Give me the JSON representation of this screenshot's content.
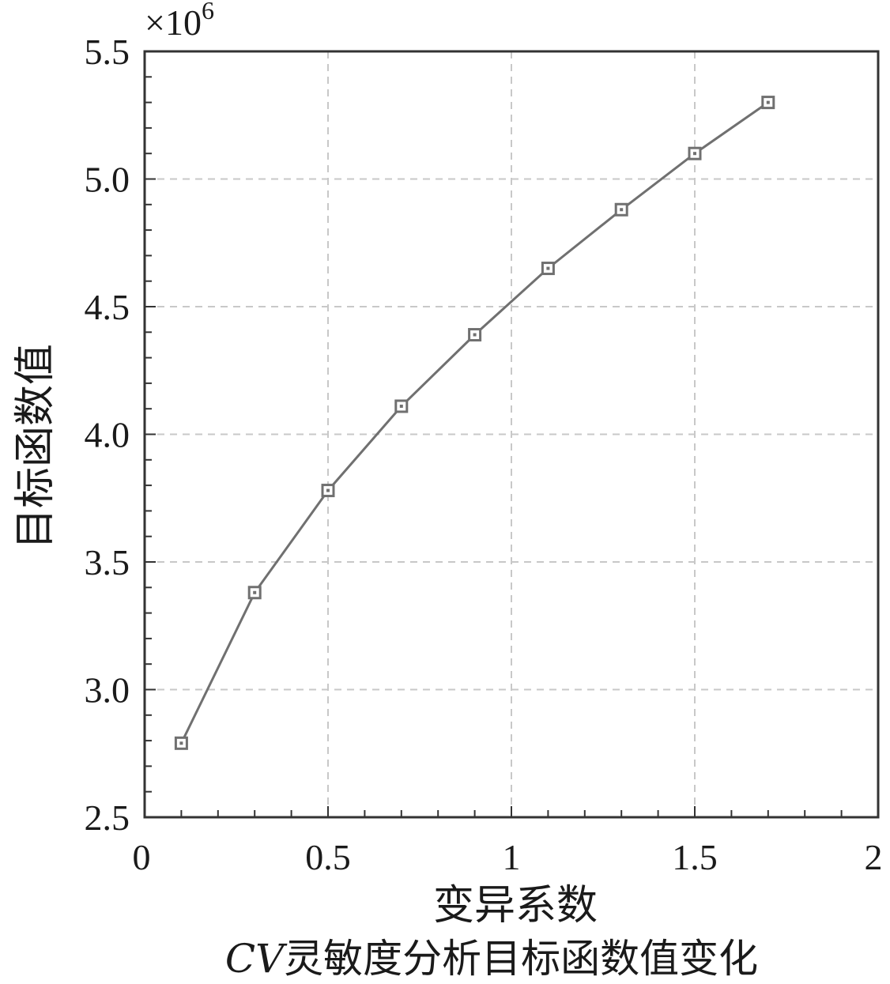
{
  "chart_data": {
    "type": "line",
    "x": [
      0.1,
      0.3,
      0.5,
      0.7,
      0.9,
      1.1,
      1.3,
      1.5,
      1.7
    ],
    "series": [
      {
        "values": [
          2.79,
          3.38,
          3.78,
          4.11,
          4.39,
          4.65,
          4.88,
          5.1,
          5.3
        ],
        "color": "#707070",
        "marker": "square"
      }
    ],
    "xlim": [
      0,
      2
    ],
    "ylim": [
      2.5,
      5.5
    ],
    "x_ticks": [
      0,
      0.5,
      1,
      1.5,
      2
    ],
    "x_tick_labels": [
      "0",
      "0.5",
      "1",
      "1.5",
      "2"
    ],
    "y_ticks": [
      2.5,
      3.0,
      3.5,
      4.0,
      4.5,
      5.0,
      5.5
    ],
    "y_tick_labels": [
      "2.5",
      "3.0",
      "3.5",
      "4.0",
      "4.5",
      "5.0",
      "5.5"
    ],
    "y_multiplier_label": "×10",
    "y_multiplier_exponent": "6",
    "xlabel": "变异系数",
    "ylabel": "目标函数值",
    "grid": true,
    "caption_prefix": "CV",
    "caption_rest": "灵敏度分析目标函数值变化"
  }
}
